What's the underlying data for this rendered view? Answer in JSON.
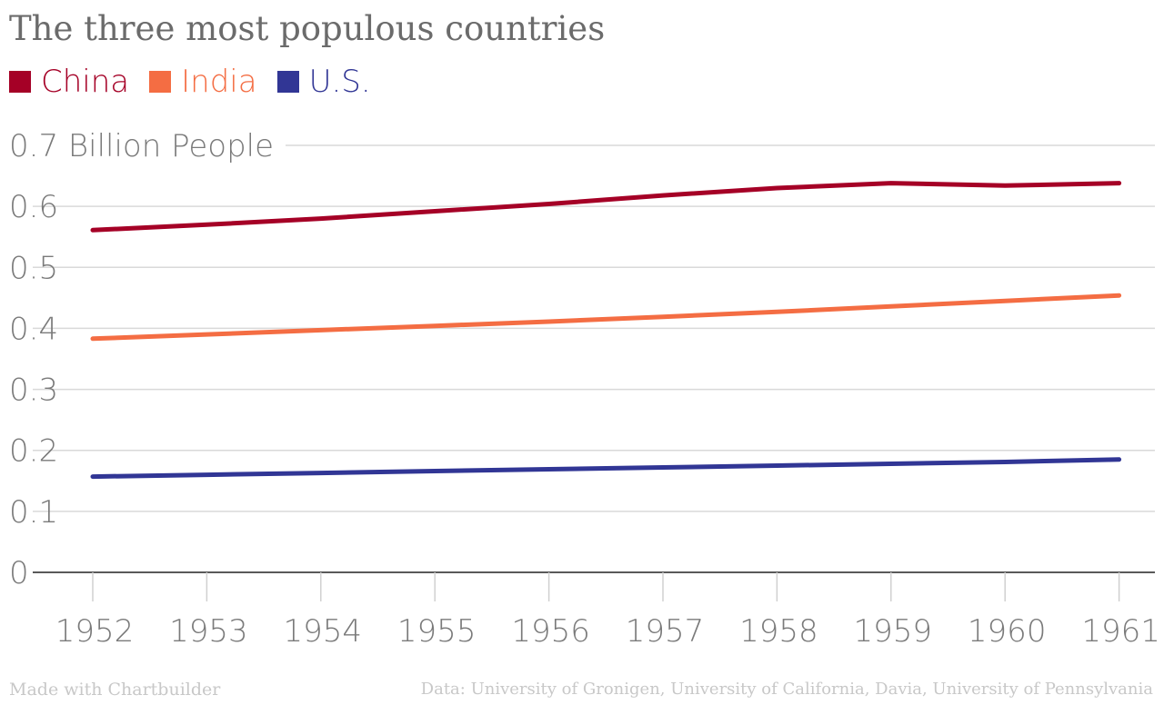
{
  "chart_data": {
    "type": "line",
    "title": "The three most populous countries",
    "ylabel": "Billion People",
    "categories": [
      "1952",
      "1953",
      "1954",
      "1955",
      "1956",
      "1957",
      "1958",
      "1959",
      "1960",
      "1961"
    ],
    "ylim": [
      0,
      0.7
    ],
    "yticks": [
      "0",
      "0.1",
      "0.2",
      "0.3",
      "0.4",
      "0.5",
      "0.6",
      "0.7"
    ],
    "top_tick_label": "0.7 Billion People",
    "grid": true,
    "legend_position": "top-left",
    "series": [
      {
        "name": "China",
        "color": "#a50026",
        "values": [
          0.561,
          0.57,
          0.58,
          0.592,
          0.604,
          0.618,
          0.63,
          0.638,
          0.634,
          0.638
        ]
      },
      {
        "name": "India",
        "color": "#f46d43",
        "values": [
          0.383,
          0.39,
          0.397,
          0.404,
          0.411,
          0.419,
          0.427,
          0.436,
          0.445,
          0.454
        ]
      },
      {
        "name": "U.S.",
        "color": "#313695",
        "values": [
          0.157,
          0.16,
          0.163,
          0.166,
          0.169,
          0.172,
          0.175,
          0.178,
          0.181,
          0.185
        ]
      }
    ]
  },
  "footer": {
    "made_with": "Made with Chartbuilder",
    "source": "Data: University of Gronigen, University of California, Davia, University of Pennsylvania"
  }
}
